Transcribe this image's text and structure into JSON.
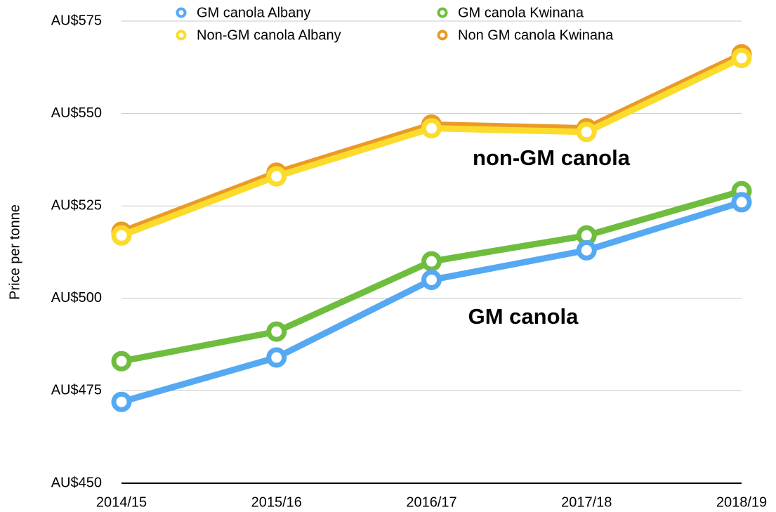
{
  "chart_data": {
    "type": "line",
    "y_label": "Price per tonne",
    "categories": [
      "2014/15",
      "2015/16",
      "2016/17",
      "2017/18",
      "2018/19"
    ],
    "series": [
      {
        "name": "GM canola Albany",
        "color": "#55a9f2",
        "values": [
          472,
          484,
          505,
          513,
          526
        ]
      },
      {
        "name": "GM canola Kwinana",
        "color": "#6fbd3e",
        "values": [
          483,
          491,
          510,
          517,
          529
        ]
      },
      {
        "name": "Non-GM canola Albany",
        "color": "#fbdc2c",
        "values": [
          517,
          533,
          546,
          545,
          565
        ]
      },
      {
        "name": "Non GM canola Kwinana",
        "color": "#eb9a26",
        "values": [
          518,
          534,
          547,
          546,
          566
        ]
      }
    ],
    "ylim": [
      450,
      575
    ],
    "yticks": [
      {
        "value": 450,
        "label": "AU$450"
      },
      {
        "value": 475,
        "label": "AU$475"
      },
      {
        "value": 500,
        "label": "AU$500"
      },
      {
        "value": 525,
        "label": "AU$525"
      },
      {
        "value": 550,
        "label": "AU$550"
      },
      {
        "value": 575,
        "label": "AU$575"
      }
    ],
    "grid": true,
    "annotations": [
      "non-GM canola",
      "GM canola"
    ]
  }
}
